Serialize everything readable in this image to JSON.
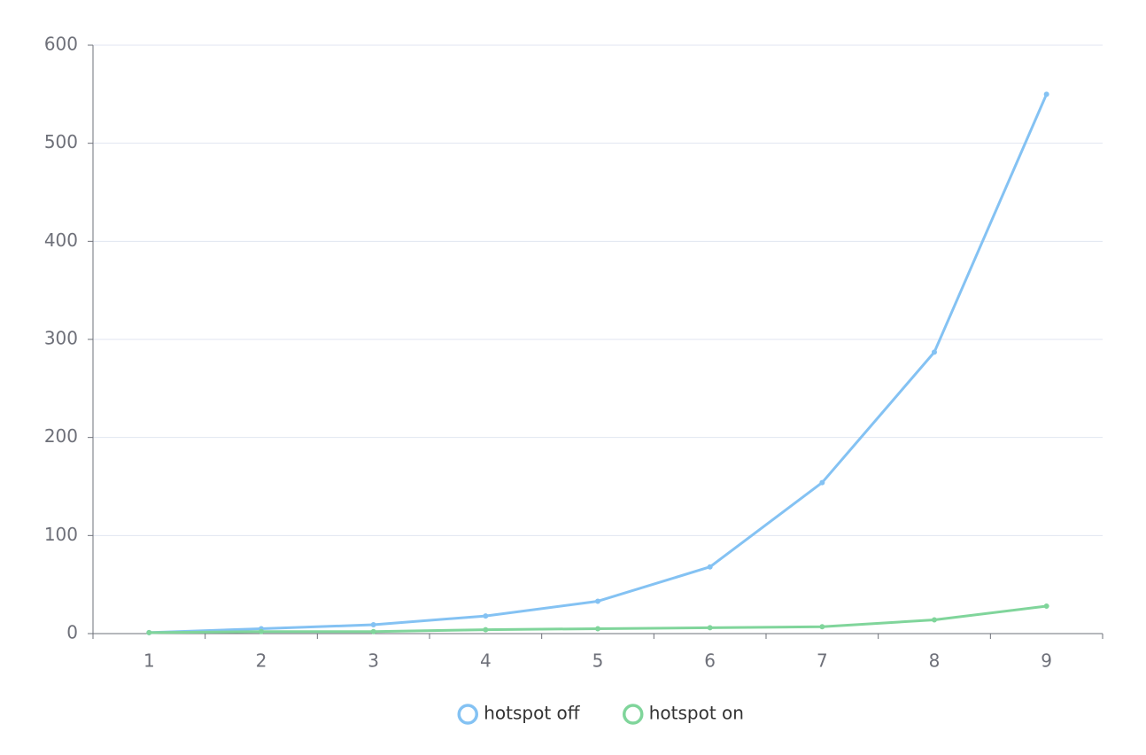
{
  "chart_data": {
    "type": "line",
    "categories": [
      "1",
      "2",
      "3",
      "4",
      "5",
      "6",
      "7",
      "8",
      "9"
    ],
    "series": [
      {
        "name": "hotspot off",
        "color": "#84c2f3",
        "values": [
          1,
          5,
          9,
          18,
          33,
          68,
          154,
          287,
          550
        ]
      },
      {
        "name": "hotspot on",
        "color": "#80d59b",
        "values": [
          1,
          2,
          2,
          4,
          5,
          6,
          7,
          14,
          28
        ]
      }
    ],
    "ylim": [
      0,
      600
    ],
    "yticks": [
      0,
      100,
      200,
      300,
      400,
      500,
      600
    ],
    "grid": true,
    "legend": "bottom"
  }
}
